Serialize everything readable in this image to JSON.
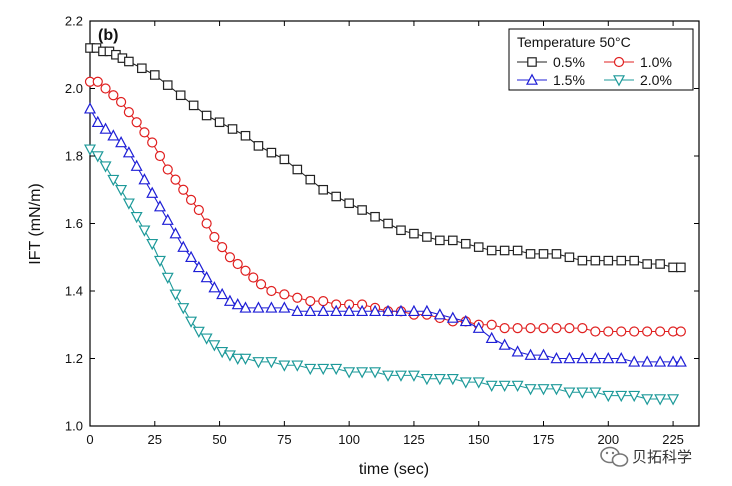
{
  "chart_data": {
    "type": "line",
    "panel_label": "(b)",
    "xlabel": "time (sec)",
    "ylabel": "IFT (mN/m)",
    "xlim": [
      0,
      235
    ],
    "ylim": [
      1.0,
      2.2
    ],
    "xticks": [
      0,
      25,
      50,
      75,
      100,
      125,
      150,
      175,
      200,
      225
    ],
    "yticks": [
      1.0,
      1.2,
      1.4,
      1.6,
      1.8,
      2.0,
      2.2
    ],
    "ytick_labels": [
      "1.0",
      "1.2",
      "1.4",
      "1.6",
      "1.8",
      "2.0",
      "2.2"
    ],
    "legend": {
      "title": "Temperature 50°C",
      "position": "top-right"
    },
    "series": [
      {
        "name": "0.5%",
        "marker": "square",
        "color": "#222222",
        "x": [
          0,
          2.5,
          5,
          7.5,
          10,
          12.5,
          15,
          20,
          25,
          30,
          35,
          40,
          45,
          50,
          55,
          60,
          65,
          70,
          75,
          80,
          85,
          90,
          95,
          100,
          105,
          110,
          115,
          120,
          125,
          130,
          135,
          140,
          145,
          150,
          155,
          160,
          165,
          170,
          175,
          180,
          185,
          190,
          195,
          200,
          205,
          210,
          215,
          220,
          225,
          228
        ],
        "y": [
          2.12,
          2.12,
          2.11,
          2.11,
          2.1,
          2.09,
          2.08,
          2.06,
          2.04,
          2.01,
          1.98,
          1.95,
          1.92,
          1.9,
          1.88,
          1.86,
          1.83,
          1.81,
          1.79,
          1.76,
          1.73,
          1.7,
          1.68,
          1.66,
          1.64,
          1.62,
          1.6,
          1.58,
          1.57,
          1.56,
          1.55,
          1.55,
          1.54,
          1.53,
          1.52,
          1.52,
          1.52,
          1.51,
          1.51,
          1.51,
          1.5,
          1.49,
          1.49,
          1.49,
          1.49,
          1.49,
          1.48,
          1.48,
          1.47,
          1.47
        ]
      },
      {
        "name": "1.0%",
        "marker": "circle",
        "color": "#e02020",
        "x": [
          0,
          3,
          6,
          9,
          12,
          15,
          18,
          21,
          24,
          27,
          30,
          33,
          36,
          39,
          42,
          45,
          48,
          51,
          54,
          57,
          60,
          63,
          66,
          70,
          75,
          80,
          85,
          90,
          95,
          100,
          105,
          110,
          115,
          120,
          125,
          130,
          135,
          140,
          145,
          150,
          155,
          160,
          165,
          170,
          175,
          180,
          185,
          190,
          195,
          200,
          205,
          210,
          215,
          220,
          225,
          228
        ],
        "y": [
          2.02,
          2.02,
          2.0,
          1.98,
          1.96,
          1.93,
          1.9,
          1.87,
          1.84,
          1.8,
          1.76,
          1.73,
          1.7,
          1.67,
          1.64,
          1.6,
          1.56,
          1.53,
          1.5,
          1.48,
          1.46,
          1.44,
          1.42,
          1.4,
          1.39,
          1.38,
          1.37,
          1.37,
          1.36,
          1.36,
          1.36,
          1.35,
          1.34,
          1.34,
          1.33,
          1.33,
          1.32,
          1.31,
          1.31,
          1.3,
          1.3,
          1.29,
          1.29,
          1.29,
          1.29,
          1.29,
          1.29,
          1.29,
          1.28,
          1.28,
          1.28,
          1.28,
          1.28,
          1.28,
          1.28,
          1.28
        ]
      },
      {
        "name": "1.5%",
        "marker": "triangle-up",
        "color": "#1f1fd6",
        "x": [
          0,
          3,
          6,
          9,
          12,
          15,
          18,
          21,
          24,
          27,
          30,
          33,
          36,
          39,
          42,
          45,
          48,
          51,
          54,
          57,
          60,
          65,
          70,
          75,
          80,
          85,
          90,
          95,
          100,
          105,
          110,
          115,
          120,
          125,
          130,
          135,
          140,
          145,
          150,
          155,
          160,
          165,
          170,
          175,
          180,
          185,
          190,
          195,
          200,
          205,
          210,
          215,
          220,
          225,
          228
        ],
        "y": [
          1.94,
          1.9,
          1.88,
          1.86,
          1.84,
          1.81,
          1.77,
          1.73,
          1.69,
          1.65,
          1.61,
          1.57,
          1.53,
          1.5,
          1.47,
          1.44,
          1.41,
          1.39,
          1.37,
          1.36,
          1.35,
          1.35,
          1.35,
          1.35,
          1.34,
          1.34,
          1.34,
          1.34,
          1.34,
          1.34,
          1.34,
          1.34,
          1.34,
          1.34,
          1.34,
          1.33,
          1.32,
          1.31,
          1.29,
          1.26,
          1.24,
          1.22,
          1.21,
          1.21,
          1.2,
          1.2,
          1.2,
          1.2,
          1.2,
          1.2,
          1.19,
          1.19,
          1.19,
          1.19,
          1.19
        ]
      },
      {
        "name": "2.0%",
        "marker": "triangle-down",
        "color": "#1e9a9a",
        "x": [
          0,
          3,
          6,
          9,
          12,
          15,
          18,
          21,
          24,
          27,
          30,
          33,
          36,
          39,
          42,
          45,
          48,
          51,
          54,
          57,
          60,
          65,
          70,
          75,
          80,
          85,
          90,
          95,
          100,
          105,
          110,
          115,
          120,
          125,
          130,
          135,
          140,
          145,
          150,
          155,
          160,
          165,
          170,
          175,
          180,
          185,
          190,
          195,
          200,
          205,
          210,
          215,
          220,
          225
        ],
        "y": [
          1.82,
          1.8,
          1.77,
          1.73,
          1.7,
          1.66,
          1.62,
          1.58,
          1.54,
          1.49,
          1.44,
          1.39,
          1.35,
          1.31,
          1.28,
          1.26,
          1.24,
          1.22,
          1.21,
          1.2,
          1.2,
          1.19,
          1.19,
          1.18,
          1.18,
          1.17,
          1.17,
          1.17,
          1.16,
          1.16,
          1.16,
          1.15,
          1.15,
          1.15,
          1.14,
          1.14,
          1.14,
          1.13,
          1.13,
          1.12,
          1.12,
          1.12,
          1.11,
          1.11,
          1.11,
          1.1,
          1.1,
          1.1,
          1.09,
          1.09,
          1.09,
          1.08,
          1.08,
          1.08
        ]
      }
    ]
  },
  "watermark": {
    "text": "贝拓科学",
    "icon": "wechat-icon"
  }
}
